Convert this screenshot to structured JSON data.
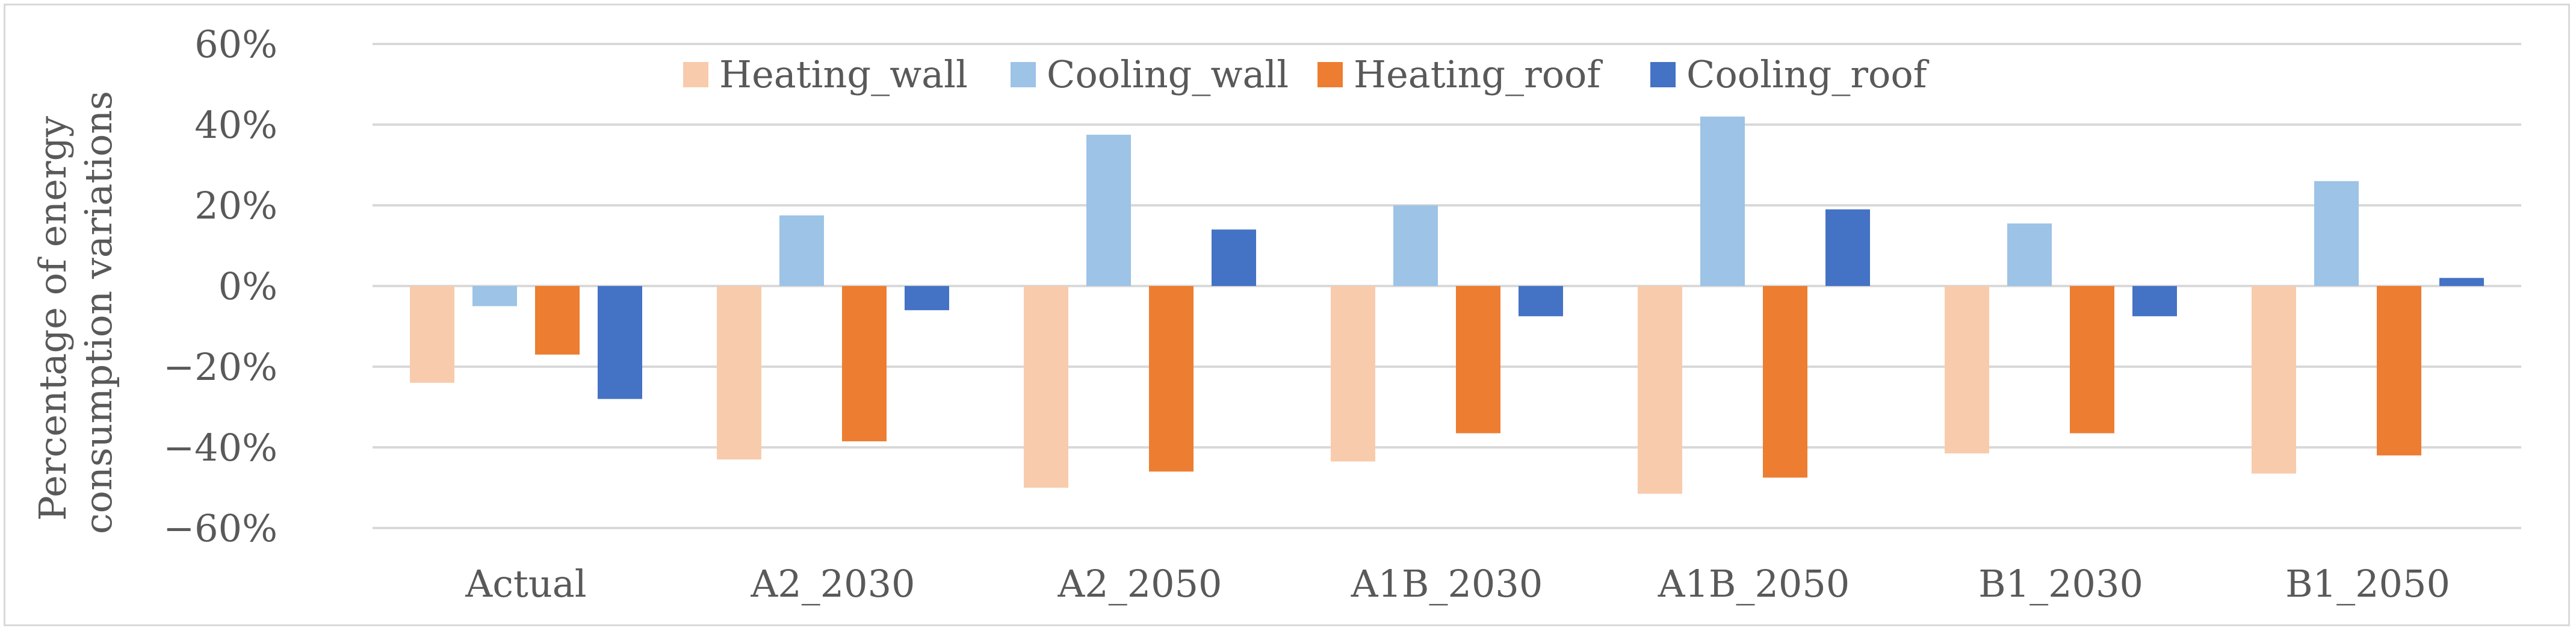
{
  "chart_data": {
    "type": "bar",
    "title": "",
    "xlabel": "",
    "ylabel": [
      "Percentage of energy",
      "consumption variations"
    ],
    "ylim": [
      -60,
      60
    ],
    "ytick_step": 20,
    "ytick_suffix": "%",
    "grid": true,
    "legend_position": "top-center",
    "categories": [
      "Actual",
      "A2_2030",
      "A2_2050",
      "A1B_2030",
      "A1B_2050",
      "B1_2030",
      "B1_2050"
    ],
    "series": [
      {
        "name": "Heating_wall",
        "color": "#f8cbad",
        "values": [
          -24,
          -43,
          -50,
          -43.5,
          -51.5,
          -41.5,
          -46.5
        ]
      },
      {
        "name": "Cooling_wall",
        "color": "#9dc3e6",
        "values": [
          -5,
          17.5,
          37.5,
          20,
          42,
          15.5,
          26
        ]
      },
      {
        "name": "Heating_roof",
        "color": "#ed7d31",
        "values": [
          -17,
          -38.5,
          -46,
          -36.5,
          -47.5,
          -36.5,
          -42
        ]
      },
      {
        "name": "Cooling_roof",
        "color": "#4472c4",
        "values": [
          -28,
          -6,
          14,
          -7.5,
          19,
          -7.5,
          2
        ]
      }
    ]
  },
  "colors": {
    "gridline": "#d9d9d9",
    "text": "#595959"
  }
}
